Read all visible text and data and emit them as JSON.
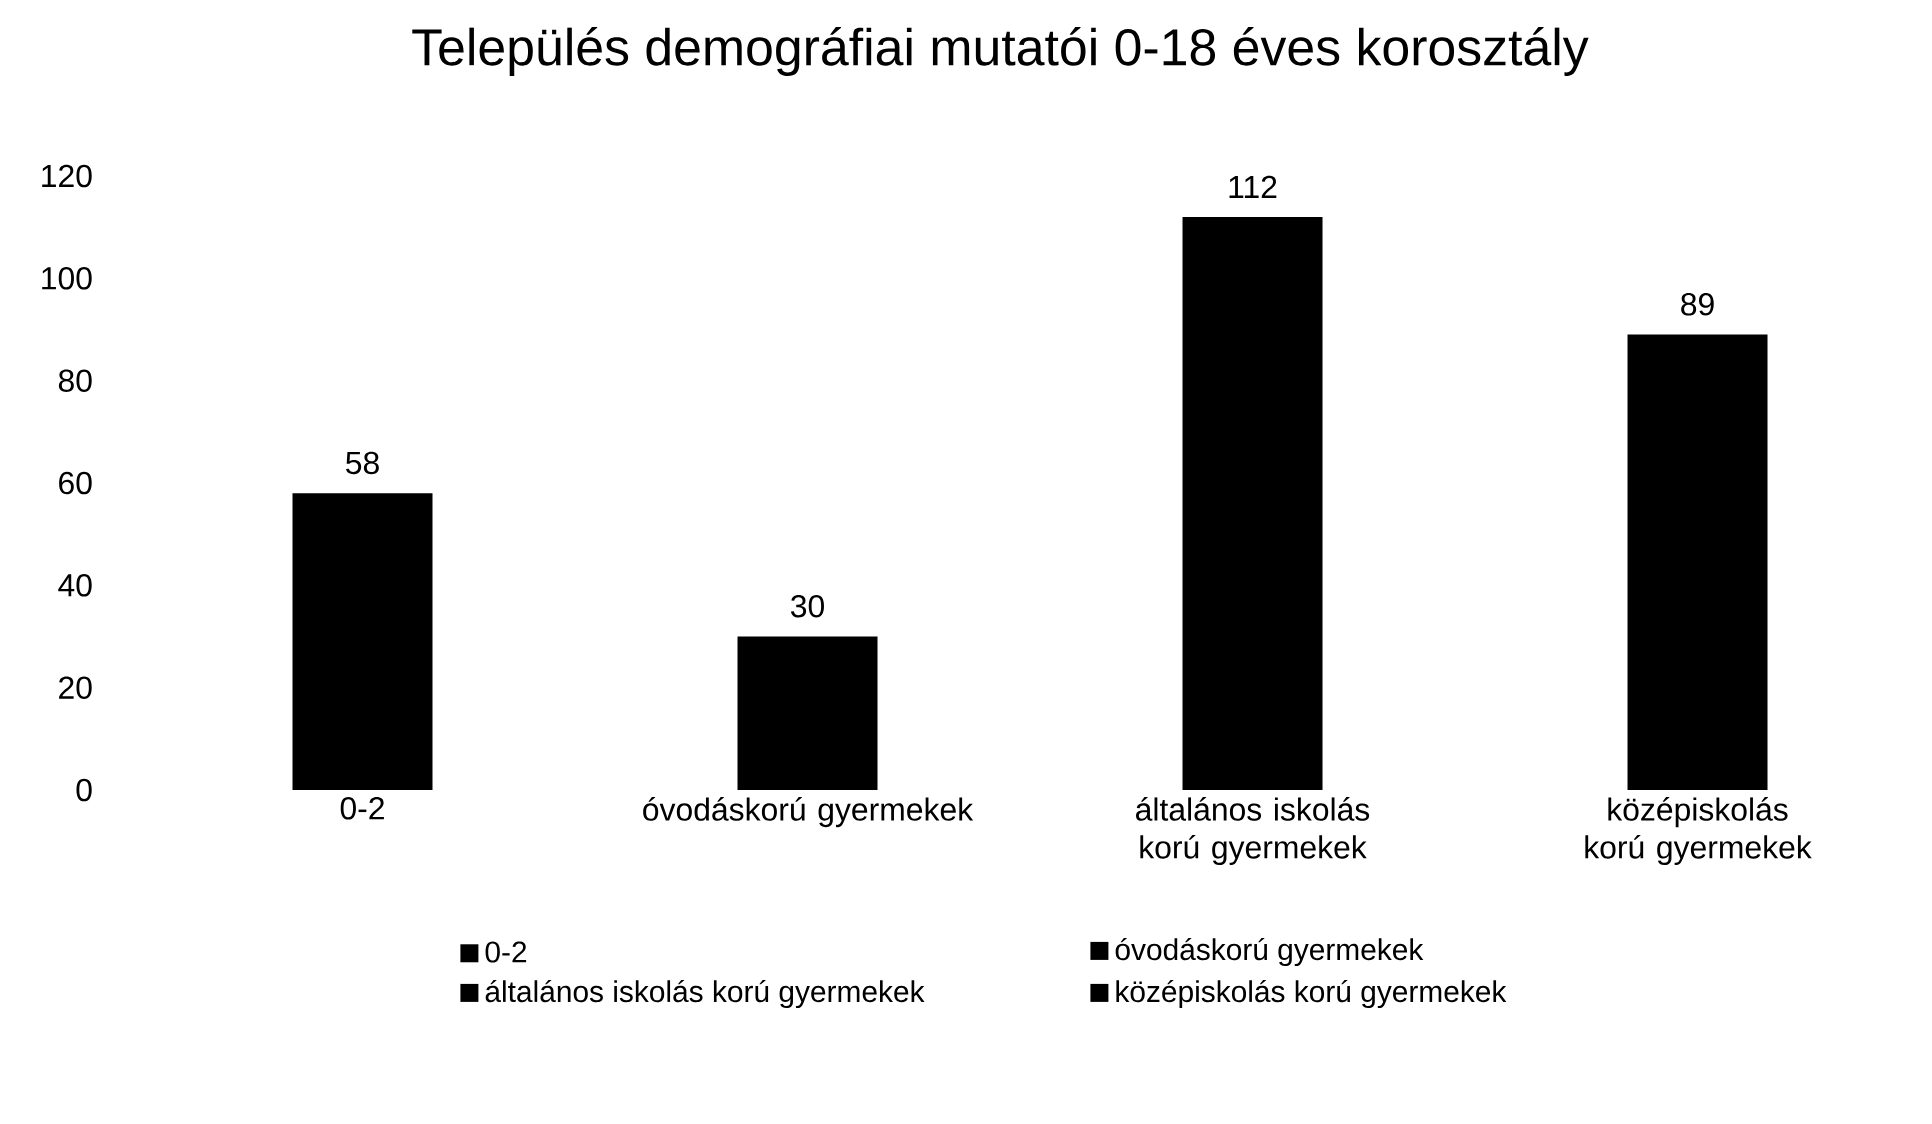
{
  "chart_data": {
    "type": "bar",
    "title": "Település demográfiai mutatói 0-18 éves korosztály",
    "categories": [
      "0-2",
      "óvodáskorú gyermekek",
      "általános iskolás korú gyermekek",
      "középiskolás korú gyermekek"
    ],
    "series": [
      {
        "name": "0-2",
        "color": "#000000",
        "values": [
          58,
          null,
          null,
          null
        ]
      },
      {
        "name": "óvodáskorú gyermekek",
        "color": "#000000",
        "values": [
          null,
          30,
          null,
          null
        ]
      },
      {
        "name": "általános iskolás korú gyermekek",
        "color": "#000000",
        "values": [
          null,
          null,
          112,
          null
        ]
      },
      {
        "name": "középiskolás korú gyermekek",
        "color": "#000000",
        "values": [
          null,
          null,
          null,
          89
        ]
      }
    ],
    "ylim": [
      0,
      120
    ],
    "yticks": [
      0,
      20,
      40,
      60,
      80,
      100,
      120
    ],
    "data_labels": true,
    "grid": false,
    "legend": "bottom"
  }
}
